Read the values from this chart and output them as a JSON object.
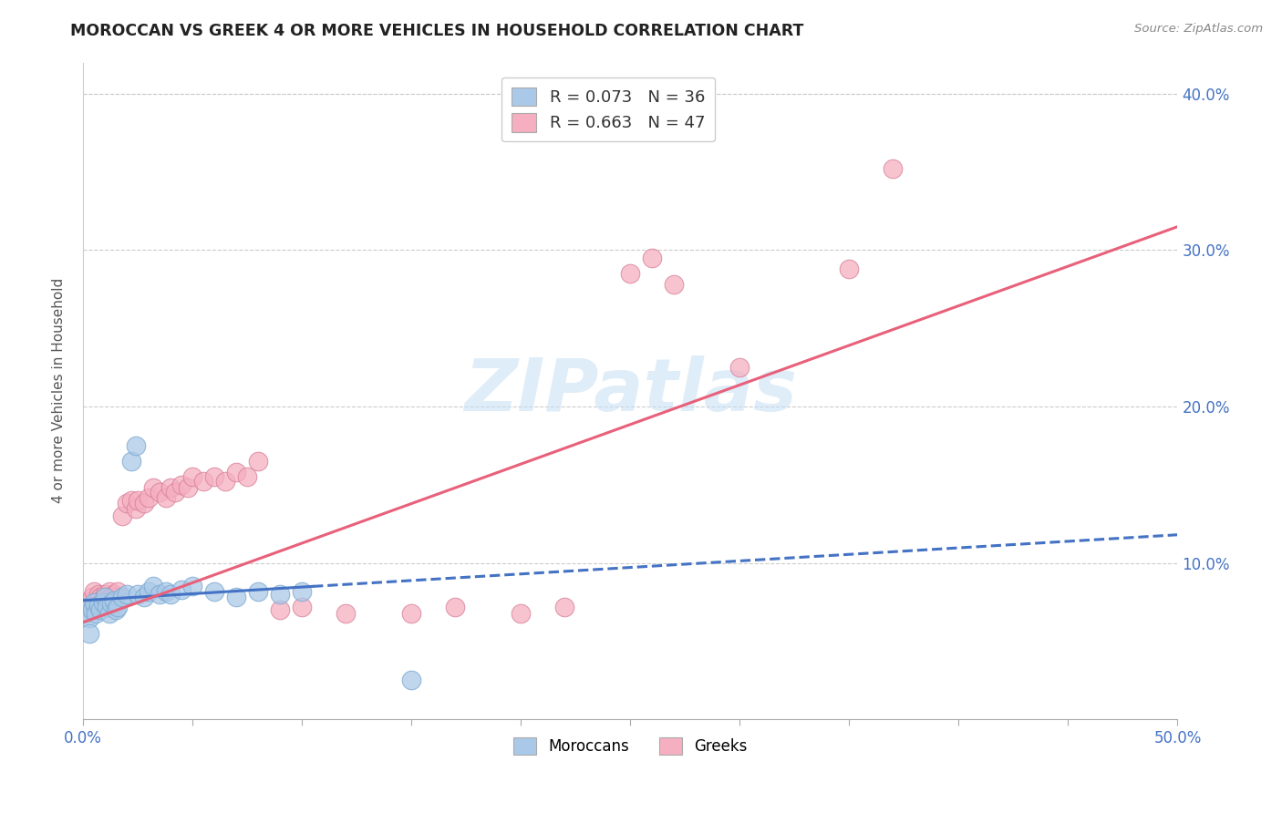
{
  "title": "MOROCCAN VS GREEK 4 OR MORE VEHICLES IN HOUSEHOLD CORRELATION CHART",
  "source": "Source: ZipAtlas.com",
  "ylabel": "4 or more Vehicles in Household",
  "xlim": [
    0.0,
    0.5
  ],
  "ylim": [
    0.0,
    0.42
  ],
  "xticks": [
    0.0,
    0.05,
    0.1,
    0.15,
    0.2,
    0.25,
    0.3,
    0.35,
    0.4,
    0.45,
    0.5
  ],
  "yticks": [
    0.0,
    0.1,
    0.2,
    0.3,
    0.4
  ],
  "legend_r1": "R = 0.073",
  "legend_n1": "N = 36",
  "legend_r2": "R = 0.663",
  "legend_n2": "N = 47",
  "moroccan_color": "#aac9e8",
  "greek_color": "#f5afc0",
  "moroccan_line_color": "#4472c4",
  "greek_line_color": "#e8607a",
  "watermark": "ZIPatlas",
  "moroccan_points": [
    [
      0.001,
      0.068
    ],
    [
      0.002,
      0.072
    ],
    [
      0.003,
      0.065
    ],
    [
      0.004,
      0.07
    ],
    [
      0.005,
      0.075
    ],
    [
      0.006,
      0.068
    ],
    [
      0.007,
      0.073
    ],
    [
      0.008,
      0.07
    ],
    [
      0.009,
      0.075
    ],
    [
      0.01,
      0.078
    ],
    [
      0.011,
      0.072
    ],
    [
      0.012,
      0.068
    ],
    [
      0.013,
      0.074
    ],
    [
      0.014,
      0.076
    ],
    [
      0.015,
      0.07
    ],
    [
      0.016,
      0.072
    ],
    [
      0.018,
      0.078
    ],
    [
      0.02,
      0.08
    ],
    [
      0.022,
      0.165
    ],
    [
      0.024,
      0.175
    ],
    [
      0.025,
      0.08
    ],
    [
      0.028,
      0.078
    ],
    [
      0.03,
      0.082
    ],
    [
      0.032,
      0.085
    ],
    [
      0.035,
      0.08
    ],
    [
      0.038,
      0.082
    ],
    [
      0.04,
      0.08
    ],
    [
      0.045,
      0.083
    ],
    [
      0.05,
      0.085
    ],
    [
      0.06,
      0.082
    ],
    [
      0.07,
      0.078
    ],
    [
      0.08,
      0.082
    ],
    [
      0.09,
      0.08
    ],
    [
      0.1,
      0.082
    ],
    [
      0.15,
      0.025
    ],
    [
      0.003,
      0.055
    ]
  ],
  "greek_points": [
    [
      0.002,
      0.075
    ],
    [
      0.003,
      0.072
    ],
    [
      0.004,
      0.078
    ],
    [
      0.005,
      0.082
    ],
    [
      0.006,
      0.075
    ],
    [
      0.007,
      0.08
    ],
    [
      0.008,
      0.078
    ],
    [
      0.01,
      0.08
    ],
    [
      0.012,
      0.082
    ],
    [
      0.013,
      0.078
    ],
    [
      0.014,
      0.08
    ],
    [
      0.015,
      0.078
    ],
    [
      0.016,
      0.082
    ],
    [
      0.018,
      0.13
    ],
    [
      0.02,
      0.138
    ],
    [
      0.022,
      0.14
    ],
    [
      0.024,
      0.135
    ],
    [
      0.025,
      0.14
    ],
    [
      0.028,
      0.138
    ],
    [
      0.03,
      0.142
    ],
    [
      0.032,
      0.148
    ],
    [
      0.035,
      0.145
    ],
    [
      0.038,
      0.142
    ],
    [
      0.04,
      0.148
    ],
    [
      0.042,
      0.145
    ],
    [
      0.045,
      0.15
    ],
    [
      0.048,
      0.148
    ],
    [
      0.05,
      0.155
    ],
    [
      0.055,
      0.152
    ],
    [
      0.06,
      0.155
    ],
    [
      0.065,
      0.152
    ],
    [
      0.07,
      0.158
    ],
    [
      0.075,
      0.155
    ],
    [
      0.08,
      0.165
    ],
    [
      0.09,
      0.07
    ],
    [
      0.1,
      0.072
    ],
    [
      0.12,
      0.068
    ],
    [
      0.15,
      0.068
    ],
    [
      0.17,
      0.072
    ],
    [
      0.2,
      0.068
    ],
    [
      0.22,
      0.072
    ],
    [
      0.25,
      0.285
    ],
    [
      0.26,
      0.295
    ],
    [
      0.27,
      0.278
    ],
    [
      0.3,
      0.225
    ],
    [
      0.35,
      0.288
    ],
    [
      0.37,
      0.352
    ]
  ],
  "moroccan_line_solid": [
    [
      0.0,
      0.076
    ],
    [
      0.105,
      0.085
    ]
  ],
  "moroccan_line_dashed": [
    [
      0.105,
      0.085
    ],
    [
      0.5,
      0.118
    ]
  ],
  "greek_line": [
    [
      0.0,
      0.062
    ],
    [
      0.5,
      0.315
    ]
  ]
}
